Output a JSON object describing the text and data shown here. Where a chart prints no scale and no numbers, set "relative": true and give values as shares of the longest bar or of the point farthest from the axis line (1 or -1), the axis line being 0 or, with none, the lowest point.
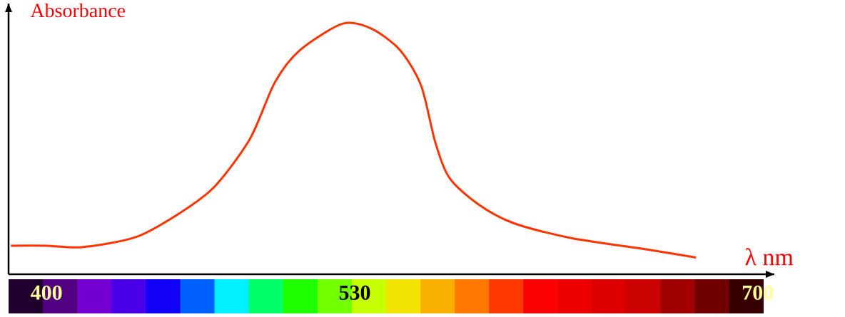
{
  "chart_data": {
    "type": "line",
    "relative": true,
    "ylabel": "Absorbance",
    "xlabel": "λ nm",
    "color": "#ff3300",
    "x": [
      385,
      400,
      415,
      437.6,
      455.7,
      470.8,
      485.8,
      496.4,
      507,
      525,
      537,
      549,
      558,
      564,
      570,
      582,
      597,
      621,
      651.5,
      674
    ],
    "values": [
      0.114,
      0.114,
      0.108,
      0.148,
      0.241,
      0.349,
      0.54,
      0.767,
      0.895,
      1,
      0.98,
      0.895,
      0.753,
      0.526,
      0.384,
      0.28,
      0.204,
      0.145,
      0.1015,
      0.067
    ],
    "xlim": [
      384,
      707
    ],
    "xticks": [
      400,
      530,
      700
    ]
  }
}
